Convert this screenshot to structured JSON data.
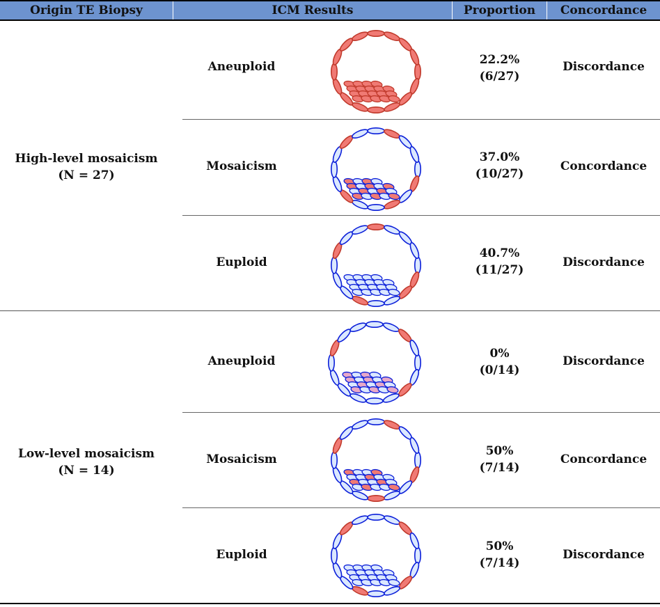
{
  "headers": [
    "Origin TE Biopsy",
    "ICM Results",
    "Proportion",
    "Concordance"
  ],
  "groups": [
    {
      "origin_line1": "High-level mosaicism",
      "origin_line2": "(N = 27)",
      "rows": [
        {
          "icm": "Aneuploid",
          "pct": "22.2%",
          "frac": "(6/27)",
          "concordance": "Discordance",
          "embryo": "aneuploid"
        },
        {
          "icm": "Mosaicism",
          "pct": "37.0%",
          "frac": "(10/27)",
          "concordance": "Concordance",
          "embryo": "mosaic-high"
        },
        {
          "icm": "Euploid",
          "pct": "40.7%",
          "frac": "(11/27)",
          "concordance": "Discordance",
          "embryo": "euploid-high"
        }
      ]
    },
    {
      "origin_line1": "Low-level mosaicism",
      "origin_line2": "(N = 14)",
      "rows": [
        {
          "icm": "Aneuploid",
          "pct": "0%",
          "frac": "(0/14)",
          "concordance": "Discordance",
          "embryo": "aneuploid-low"
        },
        {
          "icm": "Mosaicism",
          "pct": "50%",
          "frac": "(7/14)",
          "concordance": "Concordance",
          "embryo": "mosaic-low"
        },
        {
          "icm": "Euploid",
          "pct": "50%",
          "frac": "(7/14)",
          "concordance": "Discordance",
          "embryo": "euploid-low"
        }
      ]
    }
  ],
  "colors": {
    "header_bg": "#6d93cf",
    "red_cell": "#f07a74",
    "blue_cell": "#dbe8ff",
    "outline": "#0b1fd9"
  }
}
